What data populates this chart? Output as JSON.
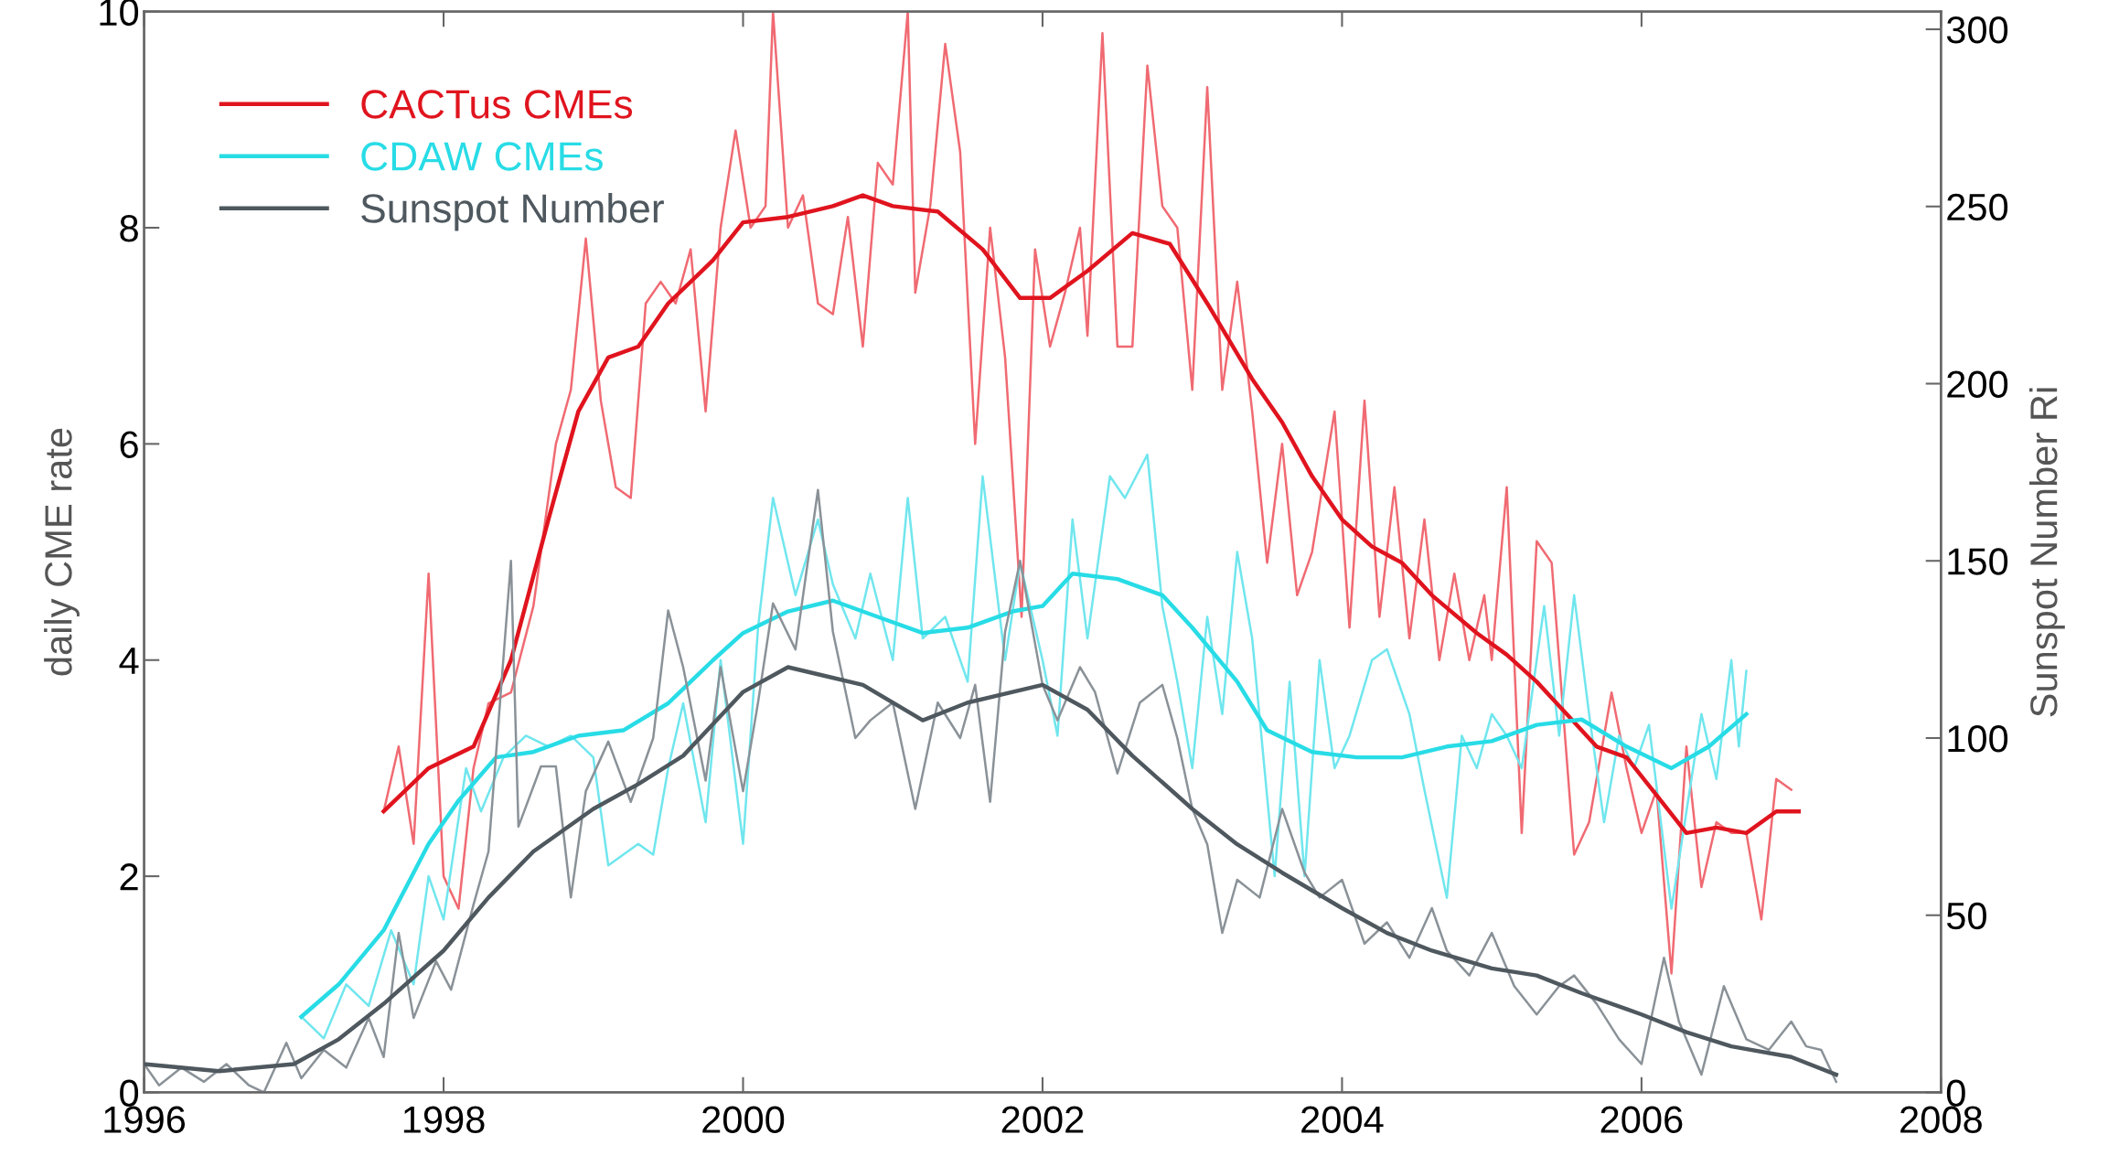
{
  "chart_data": {
    "type": "line",
    "ylabel": "daily CME rate",
    "y2label": "Sunspot Number Ri",
    "xlim": [
      1996,
      2008
    ],
    "xticks": [
      1996,
      1998,
      2000,
      2002,
      2004,
      2006,
      2008
    ],
    "ylim": [
      0,
      10
    ],
    "yticks": [
      0,
      2,
      4,
      6,
      8,
      10
    ],
    "y2lim": [
      0,
      305
    ],
    "y2ticks": [
      0,
      50,
      100,
      150,
      200,
      250,
      300
    ],
    "grid": false,
    "legend": "top left",
    "marker": "none",
    "line_style": "solid",
    "series": [
      {
        "color": "#f06a72",
        "x": [
          1997.6,
          1997.7,
          1997.8,
          1997.9,
          1998.0,
          1998.1,
          1998.2,
          1998.3,
          1998.45,
          1998.6,
          1998.75,
          1998.85,
          1998.95,
          1999.05,
          1999.15,
          1999.25,
          1999.35,
          1999.45,
          1999.55,
          1999.65,
          1999.75,
          1999.85,
          1999.95,
          2000.05,
          2000.15,
          2000.2,
          2000.3,
          2000.4,
          2000.5,
          2000.6,
          2000.7,
          2000.8,
          2000.9,
          2001.0,
          2001.1,
          2001.15,
          2001.25,
          2001.35,
          2001.45,
          2001.55,
          2001.65,
          2001.75,
          2001.86,
          2001.95,
          2002.05,
          2002.15,
          2002.25,
          2002.3,
          2002.4,
          2002.5,
          2002.6,
          2002.7,
          2002.8,
          2002.9,
          2003.0,
          2003.1,
          2003.2,
          2003.3,
          2003.4,
          2003.5,
          2003.6,
          2003.7,
          2003.8,
          2003.95,
          2004.05,
          2004.15,
          2004.25,
          2004.35,
          2004.45,
          2004.55,
          2004.65,
          2004.75,
          2004.85,
          2004.95,
          2005.0,
          2005.1,
          2005.2,
          2005.3,
          2005.4,
          2005.55,
          2005.65,
          2005.8,
          2005.9,
          2006.0,
          2006.1,
          2006.2,
          2006.3,
          2006.4,
          2006.5,
          2006.6,
          2006.7,
          2006.8,
          2006.9,
          2007.0
        ],
        "values": [
          2.6,
          3.2,
          2.3,
          4.8,
          2.0,
          1.7,
          3.0,
          3.6,
          3.7,
          4.5,
          6.0,
          6.5,
          7.9,
          6.4,
          5.6,
          5.5,
          7.3,
          7.5,
          7.3,
          7.8,
          6.3,
          8.0,
          8.9,
          8.0,
          8.2,
          10.0,
          8.0,
          8.3,
          7.3,
          7.2,
          8.1,
          6.9,
          8.6,
          8.4,
          10.0,
          7.4,
          8.2,
          9.7,
          8.7,
          6.0,
          8.0,
          6.8,
          4.4,
          7.8,
          6.9,
          7.4,
          8.0,
          7.0,
          9.8,
          6.9,
          6.9,
          9.5,
          8.2,
          8.0,
          6.5,
          9.3,
          6.5,
          7.5,
          6.3,
          4.9,
          6.0,
          4.6,
          5.0,
          6.3,
          4.3,
          6.4,
          4.4,
          5.6,
          4.2,
          5.3,
          4.0,
          4.8,
          4.0,
          4.6,
          4.0,
          5.6,
          2.4,
          5.1,
          4.9,
          2.2,
          2.5,
          3.7,
          3.0,
          2.4,
          2.8,
          1.1,
          3.2,
          1.9,
          2.5,
          2.4,
          2.4,
          1.6,
          2.9,
          2.8
        ]
      },
      {
        "color": "#70e6ee",
        "x": [
          1997.05,
          1997.2,
          1997.35,
          1997.5,
          1997.65,
          1997.8,
          1997.9,
          1998.0,
          1998.15,
          1998.25,
          1998.4,
          1998.55,
          1998.7,
          1998.85,
          1999.0,
          1999.1,
          1999.3,
          1999.4,
          1999.5,
          1999.6,
          1999.75,
          1999.85,
          2000.0,
          2000.1,
          2000.2,
          2000.35,
          2000.5,
          2000.6,
          2000.75,
          2000.85,
          2001.0,
          2001.1,
          2001.2,
          2001.35,
          2001.5,
          2001.6,
          2001.75,
          2001.85,
          2002.0,
          2002.1,
          2002.2,
          2002.3,
          2002.45,
          2002.55,
          2002.7,
          2002.8,
          2002.9,
          2003.0,
          2003.1,
          2003.2,
          2003.3,
          2003.4,
          2003.55,
          2003.65,
          2003.75,
          2003.85,
          2003.95,
          2004.05,
          2004.2,
          2004.3,
          2004.45,
          2004.55,
          2004.7,
          2004.8,
          2004.9,
          2005.0,
          2005.1,
          2005.2,
          2005.35,
          2005.45,
          2005.55,
          2005.65,
          2005.75,
          2005.85,
          2005.95,
          2006.05,
          2006.2,
          2006.3,
          2006.4,
          2006.5,
          2006.6,
          2006.65,
          2006.7
        ],
        "values": [
          0.7,
          0.5,
          1.0,
          0.8,
          1.5,
          1.0,
          2.0,
          1.6,
          3.0,
          2.6,
          3.1,
          3.3,
          3.2,
          3.3,
          3.1,
          2.1,
          2.3,
          2.2,
          3.0,
          3.6,
          2.5,
          4.0,
          2.3,
          4.3,
          5.5,
          4.6,
          5.3,
          4.7,
          4.2,
          4.8,
          4.0,
          5.5,
          4.2,
          4.4,
          3.8,
          5.7,
          4.0,
          4.9,
          4.0,
          3.3,
          5.3,
          4.2,
          5.7,
          5.5,
          5.9,
          4.5,
          3.8,
          3.0,
          4.4,
          3.5,
          5.0,
          4.2,
          2.0,
          3.8,
          2.0,
          4.0,
          3.0,
          3.3,
          4.0,
          4.1,
          3.5,
          2.8,
          1.8,
          3.3,
          3.0,
          3.5,
          3.3,
          3.0,
          4.5,
          3.3,
          4.6,
          3.5,
          2.5,
          3.3,
          3.0,
          3.4,
          1.7,
          2.6,
          3.5,
          2.9,
          4.0,
          3.2,
          3.9
        ]
      },
      {
        "color": "#8a9298",
        "axis": "y2",
        "x": [
          1996.0,
          1996.1,
          1996.25,
          1996.4,
          1996.55,
          1996.7,
          1996.8,
          1996.95,
          1997.05,
          1997.2,
          1997.35,
          1997.5,
          1997.6,
          1997.7,
          1997.8,
          1997.95,
          1998.05,
          1998.2,
          1998.3,
          1998.45,
          1998.5,
          1998.65,
          1998.75,
          1998.85,
          1998.95,
          1999.1,
          1999.25,
          1999.4,
          1999.5,
          1999.6,
          1999.75,
          1999.85,
          2000.0,
          2000.1,
          2000.2,
          2000.35,
          2000.5,
          2000.6,
          2000.75,
          2000.85,
          2001.0,
          2001.15,
          2001.3,
          2001.45,
          2001.55,
          2001.65,
          2001.75,
          2001.85,
          2002.0,
          2002.1,
          2002.25,
          2002.35,
          2002.5,
          2002.65,
          2002.8,
          2002.9,
          2003.0,
          2003.1,
          2003.2,
          2003.3,
          2003.45,
          2003.6,
          2003.75,
          2003.85,
          2004.0,
          2004.15,
          2004.3,
          2004.45,
          2004.6,
          2004.7,
          2004.85,
          2005.0,
          2005.15,
          2005.3,
          2005.45,
          2005.55,
          2005.7,
          2005.85,
          2006.0,
          2006.15,
          2006.25,
          2006.4,
          2006.55,
          2006.7,
          2006.85,
          2007.0,
          2007.1,
          2007.2,
          2007.3
        ],
        "values": [
          8,
          2,
          7,
          3,
          8,
          2,
          0,
          14,
          4,
          12,
          7,
          21,
          10,
          45,
          21,
          37,
          29,
          53,
          68,
          150,
          75,
          92,
          92,
          55,
          85,
          99,
          82,
          100,
          136,
          120,
          88,
          120,
          85,
          110,
          138,
          125,
          170,
          130,
          100,
          105,
          110,
          80,
          110,
          100,
          115,
          82,
          130,
          150,
          115,
          105,
          120,
          113,
          90,
          110,
          115,
          100,
          80,
          70,
          45,
          60,
          55,
          80,
          62,
          55,
          60,
          42,
          48,
          38,
          52,
          40,
          33,
          45,
          30,
          22,
          30,
          33,
          25,
          15,
          8,
          38,
          20,
          5,
          30,
          15,
          12,
          20,
          13,
          12,
          3
        ]
      },
      {
        "name": "CACTus CMEs",
        "color": "#e0141e",
        "x": [
          1997.6,
          1997.9,
          1998.2,
          1998.45,
          1998.7,
          1998.9,
          1999.1,
          1999.3,
          1999.5,
          1999.8,
          2000.0,
          2000.3,
          2000.6,
          2000.8,
          2001.0,
          2001.3,
          2001.6,
          2001.85,
          2002.05,
          2002.3,
          2002.6,
          2002.85,
          2003.1,
          2003.4,
          2003.6,
          2003.8,
          2004.0,
          2004.2,
          2004.4,
          2004.6,
          2004.9,
          2005.1,
          2005.3,
          2005.5,
          2005.7,
          2005.9,
          2006.1,
          2006.3,
          2006.5,
          2006.7,
          2006.9,
          2007.05
        ],
        "values": [
          2.6,
          3.0,
          3.2,
          4.0,
          5.3,
          6.3,
          6.8,
          6.9,
          7.3,
          7.7,
          8.05,
          8.1,
          8.2,
          8.3,
          8.2,
          8.15,
          7.8,
          7.35,
          7.35,
          7.6,
          7.95,
          7.85,
          7.3,
          6.6,
          6.2,
          5.7,
          5.3,
          5.05,
          4.9,
          4.6,
          4.25,
          4.05,
          3.8,
          3.5,
          3.2,
          3.1,
          2.75,
          2.4,
          2.45,
          2.4,
          2.6,
          2.6
        ]
      },
      {
        "name": "CDAW CMEs",
        "color": "#28dce6",
        "x": [
          1997.05,
          1997.3,
          1997.6,
          1997.9,
          1998.1,
          1998.35,
          1998.6,
          1998.9,
          1999.2,
          1999.5,
          1999.8,
          2000.0,
          2000.3,
          2000.6,
          2000.9,
          2001.2,
          2001.5,
          2001.8,
          2002.0,
          2002.2,
          2002.5,
          2002.8,
          2003.0,
          2003.3,
          2003.5,
          2003.8,
          2004.1,
          2004.4,
          2004.7,
          2005.0,
          2005.3,
          2005.6,
          2005.9,
          2006.2,
          2006.45,
          2006.7
        ],
        "values": [
          0.7,
          1.0,
          1.5,
          2.3,
          2.7,
          3.1,
          3.15,
          3.3,
          3.35,
          3.6,
          4.0,
          4.25,
          4.45,
          4.55,
          4.4,
          4.25,
          4.3,
          4.45,
          4.5,
          4.8,
          4.75,
          4.6,
          4.3,
          3.8,
          3.35,
          3.15,
          3.1,
          3.1,
          3.2,
          3.25,
          3.4,
          3.45,
          3.2,
          3.0,
          3.2,
          3.5
        ]
      },
      {
        "name": "Sunspot Number",
        "color": "#4e585e",
        "axis": "y2",
        "x": [
          1996.0,
          1996.5,
          1997.0,
          1997.3,
          1997.6,
          1998.0,
          1998.3,
          1998.6,
          1999.0,
          1999.3,
          1999.6,
          2000.0,
          2000.3,
          2000.5,
          2000.8,
          2001.2,
          2001.5,
          2002.0,
          2002.3,
          2002.6,
          2003.0,
          2003.3,
          2003.6,
          2004.0,
          2004.3,
          2004.6,
          2005.0,
          2005.3,
          2005.6,
          2006.0,
          2006.3,
          2006.6,
          2007.0,
          2007.3
        ],
        "values": [
          8,
          6,
          8,
          15,
          25,
          40,
          55,
          68,
          80,
          87,
          95,
          113,
          120,
          118,
          115,
          105,
          110,
          115,
          108,
          95,
          80,
          70,
          62,
          52,
          45,
          40,
          35,
          33,
          28,
          22,
          17,
          13,
          10,
          5
        ]
      }
    ]
  }
}
